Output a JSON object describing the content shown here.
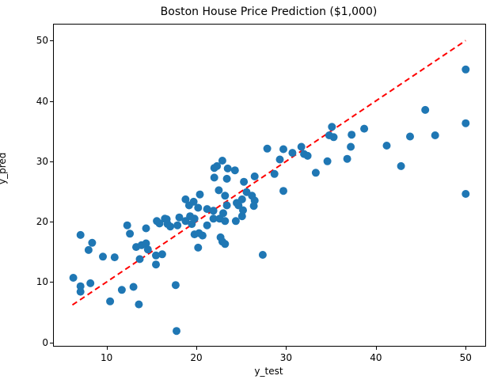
{
  "chart_data": {
    "type": "scatter",
    "title": "Boston House Price Prediction ($1,000)",
    "xlabel": "y_test",
    "ylabel": "y_pred",
    "xlim": [
      4.13,
      52.18
    ],
    "ylim": [
      -0.57,
      52.65
    ],
    "x_ticks": [
      10,
      20,
      30,
      40,
      50
    ],
    "y_ticks": [
      0,
      10,
      20,
      30,
      40,
      50
    ],
    "grid": false,
    "legend": "none",
    "point_color": "#1f77b4",
    "line_color": "#ff0000",
    "background_color": "#ffffff",
    "identity_line": {
      "x1": 6.2,
      "y1": 6.2,
      "x2": 50.0,
      "y2": 50.0,
      "style": "dashed"
    },
    "points": [
      [
        6.3,
        10.7
      ],
      [
        7.1,
        17.8
      ],
      [
        7.1,
        9.3
      ],
      [
        7.1,
        8.4
      ],
      [
        8.2,
        9.8
      ],
      [
        8.4,
        16.5
      ],
      [
        8.0,
        15.3
      ],
      [
        9.6,
        14.2
      ],
      [
        10.9,
        14.1
      ],
      [
        10.4,
        6.8
      ],
      [
        11.7,
        8.7
      ],
      [
        13.0,
        9.2
      ],
      [
        13.6,
        6.3
      ],
      [
        12.3,
        19.4
      ],
      [
        12.6,
        18.0
      ],
      [
        14.4,
        18.9
      ],
      [
        15.6,
        20.1
      ],
      [
        15.9,
        19.7
      ],
      [
        16.5,
        20.5
      ],
      [
        16.8,
        19.6
      ],
      [
        13.3,
        15.8
      ],
      [
        13.9,
        16.1
      ],
      [
        14.4,
        16.4
      ],
      [
        14.6,
        15.4
      ],
      [
        13.7,
        13.8
      ],
      [
        15.5,
        14.4
      ],
      [
        15.5,
        12.9
      ],
      [
        16.2,
        14.6
      ],
      [
        17.7,
        9.5
      ],
      [
        17.8,
        1.9
      ],
      [
        16.7,
        20.4
      ],
      [
        17.1,
        19.2
      ],
      [
        17.9,
        19.4
      ],
      [
        18.1,
        20.7
      ],
      [
        18.8,
        23.7
      ],
      [
        19.2,
        22.7
      ],
      [
        19.3,
        20.9
      ],
      [
        19.5,
        19.6
      ],
      [
        19.7,
        23.3
      ],
      [
        19.8,
        20.5
      ],
      [
        18.8,
        20.1
      ],
      [
        20.2,
        22.3
      ],
      [
        20.4,
        24.5
      ],
      [
        20.3,
        18.1
      ],
      [
        20.7,
        17.7
      ],
      [
        19.8,
        17.9
      ],
      [
        21.2,
        19.4
      ],
      [
        21.2,
        22.1
      ],
      [
        21.9,
        21.8
      ],
      [
        21.9,
        20.5
      ],
      [
        22.6,
        20.5
      ],
      [
        23.0,
        21.4
      ],
      [
        23.2,
        20.1
      ],
      [
        24.4,
        20.1
      ],
      [
        25.1,
        20.9
      ],
      [
        25.2,
        21.9
      ],
      [
        20.2,
        15.7
      ],
      [
        22.7,
        17.4
      ],
      [
        22.9,
        16.7
      ],
      [
        23.2,
        16.3
      ],
      [
        27.4,
        14.5
      ],
      [
        23.2,
        24.3
      ],
      [
        22.5,
        25.2
      ],
      [
        23.4,
        22.7
      ],
      [
        24.5,
        23.1
      ],
      [
        24.7,
        22.7
      ],
      [
        26.2,
        24.3
      ],
      [
        26.5,
        23.5
      ],
      [
        25.1,
        23.7
      ],
      [
        26.4,
        22.6
      ],
      [
        25.3,
        26.6
      ],
      [
        26.5,
        27.5
      ],
      [
        22.0,
        27.3
      ],
      [
        22.0,
        28.9
      ],
      [
        22.3,
        29.2
      ],
      [
        22.9,
        30.1
      ],
      [
        23.5,
        28.8
      ],
      [
        24.3,
        28.5
      ],
      [
        23.4,
        27.1
      ],
      [
        25.6,
        24.9
      ],
      [
        27.9,
        32.1
      ],
      [
        29.7,
        32.0
      ],
      [
        31.7,
        32.4
      ],
      [
        30.7,
        31.4
      ],
      [
        29.3,
        30.3
      ],
      [
        28.7,
        27.9
      ],
      [
        29.7,
        25.1
      ],
      [
        32.0,
        31.2
      ],
      [
        32.4,
        30.9
      ],
      [
        33.3,
        28.1
      ],
      [
        34.6,
        30.0
      ],
      [
        36.8,
        30.4
      ],
      [
        35.1,
        35.7
      ],
      [
        34.8,
        34.3
      ],
      [
        35.3,
        34.0
      ],
      [
        37.3,
        34.4
      ],
      [
        38.7,
        35.4
      ],
      [
        37.2,
        32.4
      ],
      [
        41.2,
        32.6
      ],
      [
        42.8,
        29.2
      ],
      [
        43.8,
        34.1
      ],
      [
        46.6,
        34.3
      ],
      [
        45.5,
        38.5
      ],
      [
        50.0,
        45.2
      ],
      [
        50.0,
        36.3
      ],
      [
        50.0,
        24.6
      ]
    ]
  }
}
